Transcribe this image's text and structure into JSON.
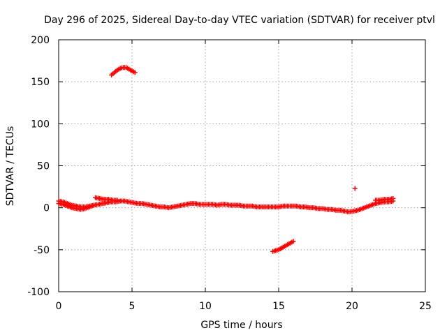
{
  "chart_data": {
    "type": "scatter",
    "title": "Day 296 of 2025, Sidereal Day-to-day VTEC variation (SDTVAR) for receiver ptvl",
    "xlabel": "GPS time / hours",
    "ylabel": "SDTVAR / TECUs",
    "xlim": [
      0,
      25
    ],
    "ylim": [
      -100,
      200
    ],
    "xticks": [
      "0",
      "5",
      "10",
      "15",
      "20",
      "25"
    ],
    "yticks": [
      "-100",
      "-50",
      "0",
      "50",
      "100",
      "150",
      "200"
    ],
    "grid": true,
    "marker": "cross",
    "color": "#ff0000",
    "series": [
      {
        "name": "SDTVAR",
        "segments": [
          {
            "x": [
              0.0,
              0.3,
              0.6,
              0.9,
              1.2,
              1.5,
              1.8,
              2.1,
              2.4,
              2.7,
              3.0,
              3.3,
              3.6,
              3.9,
              4.2,
              4.5,
              4.8,
              5.1,
              5.4,
              5.7,
              6.0,
              6.3,
              6.6,
              6.9,
              7.2,
              7.5,
              7.8,
              8.1,
              8.4,
              8.7,
              9.0,
              9.3,
              9.6,
              9.9,
              10.2,
              10.5,
              10.8,
              11.1,
              11.4,
              11.7,
              12.0,
              12.3,
              12.6,
              12.9,
              13.2,
              13.5,
              13.8,
              14.1,
              14.4,
              14.7,
              15.0,
              15.3,
              15.6,
              15.9,
              16.2,
              16.5,
              16.8,
              17.1,
              17.4,
              17.7,
              18.0,
              18.3,
              18.6,
              18.9,
              19.2,
              19.5,
              19.8,
              20.1,
              20.4,
              20.7,
              21.0,
              21.3,
              21.6,
              21.9,
              22.2,
              22.5,
              22.8
            ],
            "y": [
              5,
              4,
              2,
              0,
              -1,
              -2,
              -1,
              1,
              3,
              4,
              5,
              6,
              7,
              7,
              8,
              8,
              7,
              6,
              5,
              5,
              4,
              3,
              2,
              1,
              1,
              0,
              1,
              2,
              3,
              4,
              5,
              5,
              4,
              4,
              4,
              4,
              3,
              4,
              4,
              3,
              3,
              3,
              2,
              2,
              2,
              1,
              1,
              1,
              1,
              1,
              1,
              2,
              2,
              2,
              2,
              1,
              1,
              0,
              0,
              -1,
              -1,
              -2,
              -2,
              -3,
              -3,
              -4,
              -5,
              -4,
              -3,
              -1,
              1,
              3,
              5,
              6,
              7,
              7,
              8
            ]
          },
          {
            "x": [
              0.0,
              0.3,
              0.6,
              0.9,
              1.2,
              1.5,
              1.8,
              2.1,
              2.4
            ],
            "y": [
              8,
              7,
              5,
              3,
              2,
              1,
              1,
              2,
              3
            ]
          },
          {
            "x": [
              2.5,
              2.8,
              3.1,
              3.4,
              3.7,
              4.0
            ],
            "y": [
              12,
              11,
              10,
              10,
              9,
              9
            ]
          },
          {
            "x": [
              21.6,
              21.9,
              22.2,
              22.5,
              22.8
            ],
            "y": [
              9,
              9,
              10,
              10,
              11
            ]
          },
          {
            "x": [
              3.6,
              3.8,
              4.0,
              4.2,
              4.4,
              4.6,
              4.8,
              5.0,
              5.2
            ],
            "y": [
              158,
              161,
              164,
              166,
              167,
              167,
              165,
              163,
              161
            ]
          },
          {
            "x": [
              14.6,
              14.8,
              15.0,
              15.2,
              15.4,
              15.6,
              15.8,
              16.0
            ],
            "y": [
              -52,
              -51,
              -50,
              -48,
              -46,
              -44,
              -42,
              -40
            ]
          },
          {
            "x": [
              20.2
            ],
            "y": [
              23
            ]
          }
        ]
      }
    ]
  }
}
